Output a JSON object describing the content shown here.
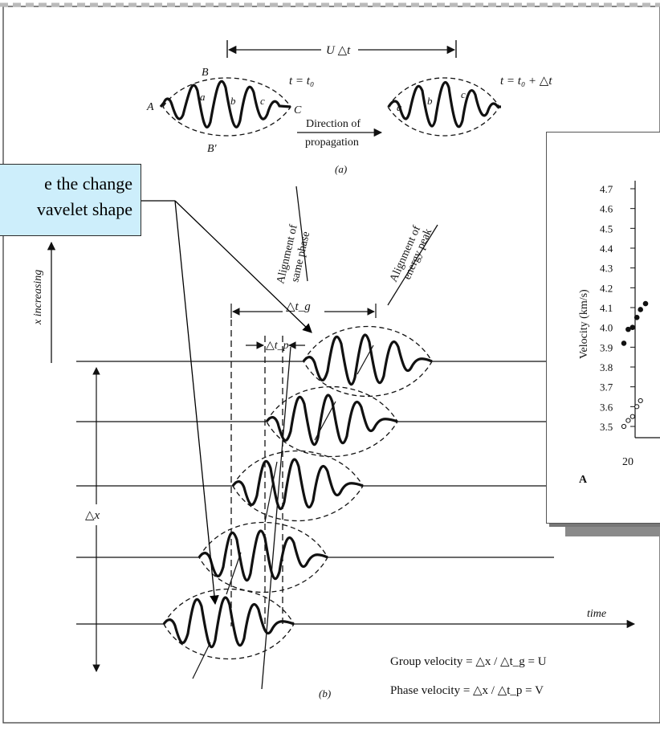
{
  "callout": {
    "line1": "e the change",
    "line2": "vavelet shape"
  },
  "diagram_a": {
    "u_dt": "U △t",
    "t0": "t = t₀",
    "t1": "t = t₀ + △t",
    "labels": {
      "A": "A",
      "B": "B",
      "Bp": "B'",
      "C": "C",
      "a": "a",
      "b": "b",
      "c": "c"
    },
    "direction_line1": "Direction of",
    "direction_line2": "propagation",
    "caption": "(a)"
  },
  "diagram_b": {
    "x_increasing": "x increasing",
    "same_phase_line1": "Alignment of",
    "same_phase_line2": "same phase",
    "energy_peak_line1": "Alignment of",
    "energy_peak_line2": "energy peak",
    "dt_g": "△t_g",
    "dt_p": "△t_p",
    "dx": "△x",
    "time": "time",
    "group_velocity": "Group velocity = △x / △t_g = U",
    "phase_velocity": "Phase velocity = △x / △t_p = V",
    "caption": "(b)"
  },
  "inset_chart": {
    "ylabel": "Velocity (km/s)",
    "yticks": [
      "4.7",
      "4.6",
      "4.5",
      "4.4",
      "4.3",
      "4.2",
      "4.1",
      "4.0",
      "3.9",
      "3.8",
      "3.7",
      "3.6",
      "3.5"
    ],
    "xtick": "20",
    "panel_label": "A"
  },
  "chart_data": {
    "type": "scatter",
    "ylabel": "Velocity (km/s)",
    "ylim": [
      3.5,
      4.7
    ],
    "x_tick_labels": [
      "20"
    ],
    "series": [
      {
        "marker": "filled",
        "x": [
          20.0,
          20.6,
          21.2,
          21.8,
          22.3,
          23.0
        ],
        "y": [
          3.92,
          3.99,
          4.0,
          4.05,
          4.09,
          4.12
        ]
      },
      {
        "marker": "open",
        "x": [
          20.0,
          20.6,
          21.2,
          21.8,
          22.3
        ],
        "y": [
          3.5,
          3.53,
          3.55,
          3.6,
          3.63
        ]
      }
    ]
  }
}
